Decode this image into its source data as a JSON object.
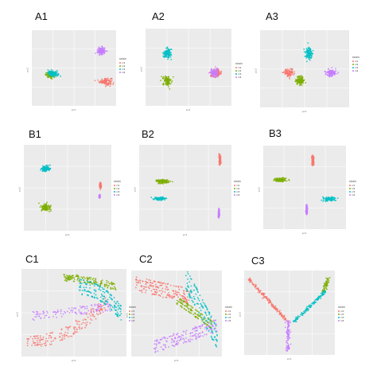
{
  "figure": {
    "panels": [
      "A1",
      "A2",
      "A3",
      "B1",
      "B2",
      "B3",
      "C1",
      "C2",
      "C3"
    ]
  },
  "legend": {
    "title": "strain",
    "entries": [
      "cl1",
      "cl2",
      "cl3",
      "cl4"
    ],
    "colors": [
      "#F8766D",
      "#7CAE00",
      "#00BFC4",
      "#C77CFF"
    ]
  },
  "axes": {
    "xlabel": "pc1",
    "ylabel": "pc2"
  },
  "chart_data": [
    {
      "panel": "A1",
      "type": "scatter",
      "series": [
        {
          "color": "#F8766D",
          "center": [
            7.5,
            -3.5
          ],
          "spread": [
            1.2,
            0.8
          ]
        },
        {
          "color": "#7CAE00",
          "center": [
            -5.5,
            -1.8
          ],
          "spread": [
            1.0,
            0.6
          ]
        },
        {
          "color": "#00BFC4",
          "center": [
            -5.0,
            -1.5
          ],
          "spread": [
            1.0,
            0.6
          ]
        },
        {
          "color": "#C77CFF",
          "center": [
            6.5,
            4.5
          ],
          "spread": [
            0.8,
            0.8
          ]
        }
      ]
    },
    {
      "panel": "A2",
      "type": "scatter",
      "series": [
        {
          "color": "#F8766D",
          "center": [
            6.5,
            -1.5
          ],
          "spread": [
            1.0,
            0.8
          ]
        },
        {
          "color": "#7CAE00",
          "center": [
            -5.0,
            -3.5
          ],
          "spread": [
            0.8,
            1.0
          ]
        },
        {
          "color": "#00BFC4",
          "center": [
            -5.0,
            3.5
          ],
          "spread": [
            0.8,
            1.2
          ]
        },
        {
          "color": "#C77CFF",
          "center": [
            6.0,
            -1.5
          ],
          "spread": [
            0.8,
            0.8
          ]
        }
      ]
    },
    {
      "panel": "A3",
      "type": "scatter",
      "series": [
        {
          "color": "#F8766D",
          "center": [
            -3.5,
            -1.0
          ],
          "spread": [
            0.9,
            0.8
          ]
        },
        {
          "color": "#7CAE00",
          "center": [
            -1.0,
            -3.0
          ],
          "spread": [
            0.8,
            1.0
          ]
        },
        {
          "color": "#00BFC4",
          "center": [
            1.0,
            4.0
          ],
          "spread": [
            0.7,
            1.3
          ]
        },
        {
          "color": "#C77CFF",
          "center": [
            6.0,
            -1.0
          ],
          "spread": [
            0.9,
            0.7
          ]
        }
      ]
    },
    {
      "panel": "B1",
      "type": "scatter",
      "series": [
        {
          "color": "#F8766D",
          "center": [
            7.5,
            0.5
          ],
          "spread": [
            0.15,
            0.6
          ]
        },
        {
          "color": "#7CAE00",
          "center": [
            -5.0,
            -4.5
          ],
          "spread": [
            0.9,
            0.7
          ]
        },
        {
          "color": "#00BFC4",
          "center": [
            -5.0,
            4.5
          ],
          "spread": [
            0.9,
            0.6
          ]
        },
        {
          "color": "#C77CFF",
          "center": [
            7.3,
            -2.0
          ],
          "spread": [
            0.1,
            0.3
          ]
        }
      ]
    },
    {
      "panel": "B2",
      "type": "scatter",
      "series": [
        {
          "color": "#F8766D",
          "center": [
            7.5,
            6.5
          ],
          "spread": [
            0.15,
            1.0
          ]
        },
        {
          "color": "#7CAE00",
          "center": [
            -5.0,
            1.5
          ],
          "spread": [
            1.1,
            0.35
          ]
        },
        {
          "color": "#00BFC4",
          "center": [
            -5.5,
            -2.5
          ],
          "spread": [
            1.0,
            0.3
          ]
        },
        {
          "color": "#C77CFF",
          "center": [
            7.3,
            -6.0
          ],
          "spread": [
            0.12,
            0.8
          ]
        }
      ]
    },
    {
      "panel": "B3",
      "type": "scatter",
      "series": [
        {
          "color": "#F8766D",
          "center": [
            2.0,
            6.5
          ],
          "spread": [
            0.2,
            1.1
          ]
        },
        {
          "color": "#7CAE00",
          "center": [
            -6.0,
            1.8
          ],
          "spread": [
            1.2,
            0.4
          ]
        },
        {
          "color": "#00BFC4",
          "center": [
            6.0,
            -2.8
          ],
          "spread": [
            1.3,
            0.4
          ]
        },
        {
          "color": "#C77CFF",
          "center": [
            0.5,
            -5.5
          ],
          "spread": [
            0.15,
            0.9
          ]
        }
      ]
    },
    {
      "panel": "C1",
      "type": "scatter",
      "series": [
        {
          "color": "#F8766D",
          "pattern": "arc-bottom"
        },
        {
          "color": "#7CAE00",
          "pattern": "arc-top"
        },
        {
          "color": "#00BFC4",
          "pattern": "arc-top-inner"
        },
        {
          "color": "#C77CFF",
          "pattern": "arc-middle"
        }
      ]
    },
    {
      "panel": "C2",
      "type": "scatter",
      "series": [
        {
          "color": "#F8766D",
          "pattern": "fan-top"
        },
        {
          "color": "#7CAE00",
          "pattern": "fan-mid"
        },
        {
          "color": "#00BFC4",
          "pattern": "fan-right"
        },
        {
          "color": "#C77CFF",
          "pattern": "fan-bottom"
        }
      ]
    },
    {
      "panel": "C3",
      "type": "scatter",
      "series": [
        {
          "color": "#F8766D",
          "pattern": "branch-left"
        },
        {
          "color": "#7CAE00",
          "pattern": "branch-right-top"
        },
        {
          "color": "#00BFC4",
          "pattern": "branch-right"
        },
        {
          "color": "#C77CFF",
          "pattern": "branch-bottom"
        }
      ]
    }
  ]
}
